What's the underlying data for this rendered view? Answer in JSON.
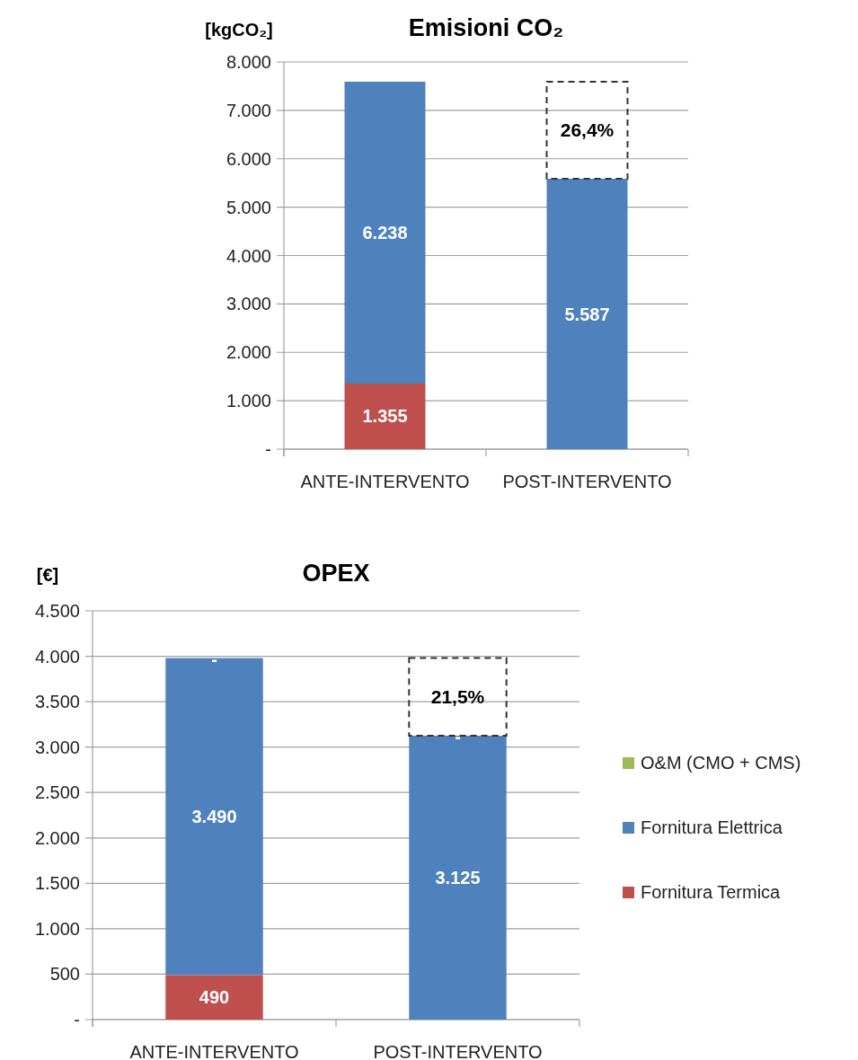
{
  "chart_data": [
    {
      "type": "bar",
      "title": "Emisioni CO₂",
      "ylabel": "[kgCO₂]",
      "stacked": true,
      "grid": "y",
      "legend": false,
      "categories": [
        "ANTE-INTERVENTO",
        "POST-INTERVENTO"
      ],
      "series": [
        {
          "color": "#c0504d",
          "values": [
            1355,
            0
          ],
          "value_labels": [
            "1.355",
            null
          ]
        },
        {
          "color": "#4f81bd",
          "values": [
            6238,
            5587
          ],
          "value_labels": [
            "6.238",
            "5.587"
          ]
        }
      ],
      "ylim": [
        0,
        8000
      ],
      "yticks": [
        {
          "value": 0,
          "label": "-"
        },
        {
          "value": 1000,
          "label": "1.000"
        },
        {
          "value": 2000,
          "label": "2.000"
        },
        {
          "value": 3000,
          "label": "3.000"
        },
        {
          "value": 4000,
          "label": "4.000"
        },
        {
          "value": 5000,
          "label": "5.000"
        },
        {
          "value": 6000,
          "label": "6.000"
        },
        {
          "value": 7000,
          "label": "7.000"
        },
        {
          "value": 8000,
          "label": "8.000"
        }
      ],
      "annotations": [
        "26,4%"
      ]
    },
    {
      "type": "bar",
      "title": "OPEX",
      "ylabel": "[€]",
      "stacked": true,
      "grid": "y",
      "legend": "right",
      "categories": [
        "ANTE-INTERVENTO",
        "POST-INTERVENTO"
      ],
      "series": [
        {
          "name": "Fornitura Termica",
          "color": "#c0504d",
          "values": [
            490,
            0
          ],
          "value_labels": [
            "490",
            null
          ]
        },
        {
          "name": "Fornitura Elettrica",
          "color": "#4f81bd",
          "values": [
            3490,
            3125
          ],
          "value_labels": [
            "3.490",
            "3.125"
          ]
        },
        {
          "name": "O&M (CMO + CMS)",
          "color": "#9bbb59",
          "values": [
            0,
            0
          ],
          "value_labels": [
            "-",
            "-"
          ]
        }
      ],
      "ylim": [
        0,
        4500
      ],
      "yticks": [
        {
          "value": 0,
          "label": "-"
        },
        {
          "value": 500,
          "label": "500"
        },
        {
          "value": 1000,
          "label": "1.000"
        },
        {
          "value": 1500,
          "label": "1.500"
        },
        {
          "value": 2000,
          "label": "2.000"
        },
        {
          "value": 2500,
          "label": "2.500"
        },
        {
          "value": 3000,
          "label": "3.000"
        },
        {
          "value": 3500,
          "label": "3.500"
        },
        {
          "value": 4000,
          "label": "4.000"
        },
        {
          "value": 4500,
          "label": "4.500"
        }
      ],
      "annotations": [
        "21,5%"
      ]
    }
  ]
}
